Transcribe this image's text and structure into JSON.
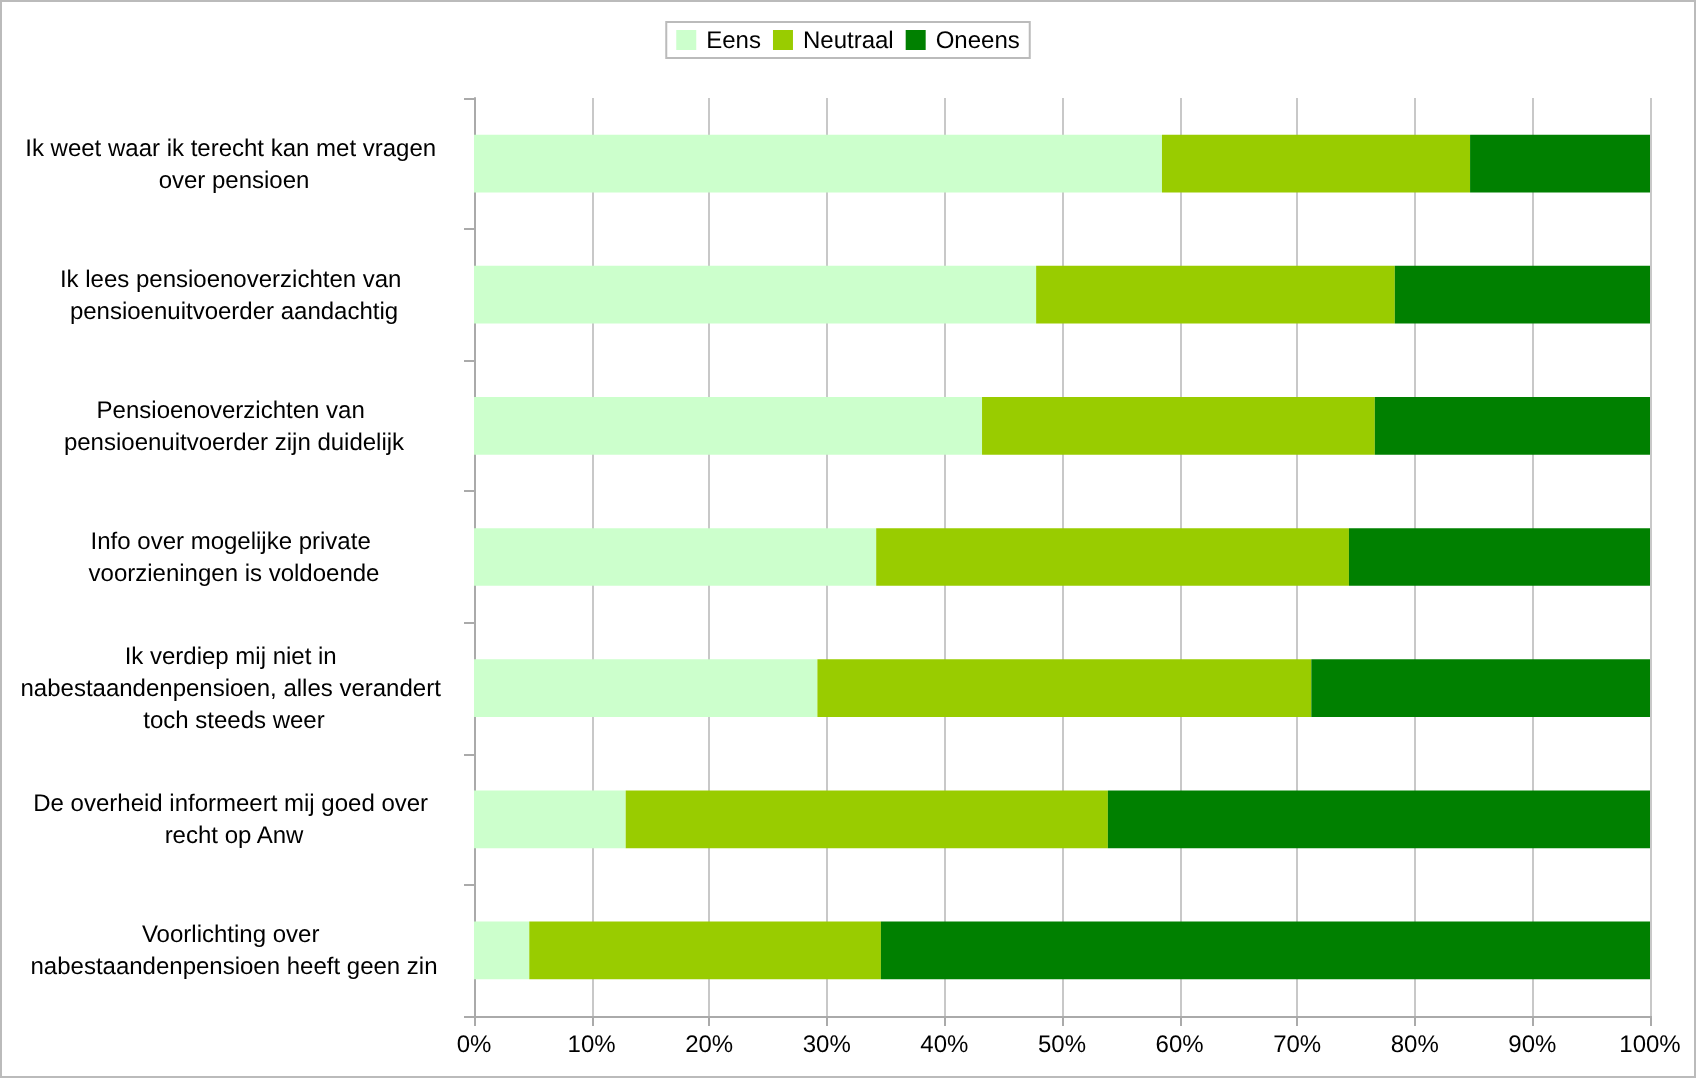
{
  "chart_data": {
    "type": "bar",
    "orientation": "horizontal",
    "stacked": true,
    "categories": [
      "Ik weet waar ik terecht kan met vragen over pensioen",
      "Ik lees pensioenoverzichten van pensioenuitvoerder aandachtig",
      "Pensioenoverzichten van pensioenuitvoerder zijn duidelijk",
      "Info over mogelijke private voorzieningen is voldoende",
      "Ik verdiep mij niet in nabestaandenpensioen, alles verandert toch steeds weer",
      "De overheid informeert mij goed over recht op Anw",
      "Voorlichting over nabestaandenpensioen heeft geen zin"
    ],
    "series": [
      {
        "name": "Eens",
        "color": "#ccffcc",
        "values": [
          58.5,
          47.8,
          43.2,
          34.2,
          29.2,
          12.9,
          4.7
        ]
      },
      {
        "name": "Neutraal",
        "color": "#99cc00",
        "values": [
          26.2,
          30.5,
          33.4,
          40.2,
          42.0,
          41.0,
          29.9
        ]
      },
      {
        "name": "Oneens",
        "color": "#008000",
        "values": [
          15.3,
          21.7,
          23.4,
          25.6,
          28.8,
          46.1,
          65.4
        ]
      }
    ],
    "xlim": [
      0,
      100
    ],
    "xticks": [
      {
        "value": 0,
        "label": "0%"
      },
      {
        "value": 10,
        "label": "10%"
      },
      {
        "value": 20,
        "label": "20%"
      },
      {
        "value": 30,
        "label": "30%"
      },
      {
        "value": 40,
        "label": "40%"
      },
      {
        "value": 50,
        "label": "50%"
      },
      {
        "value": 60,
        "label": "60%"
      },
      {
        "value": 70,
        "label": "70%"
      },
      {
        "value": 80,
        "label": "80%"
      },
      {
        "value": 90,
        "label": "90%"
      },
      {
        "value": 100,
        "label": "100%"
      }
    ],
    "grid": "x",
    "legend": "top"
  }
}
